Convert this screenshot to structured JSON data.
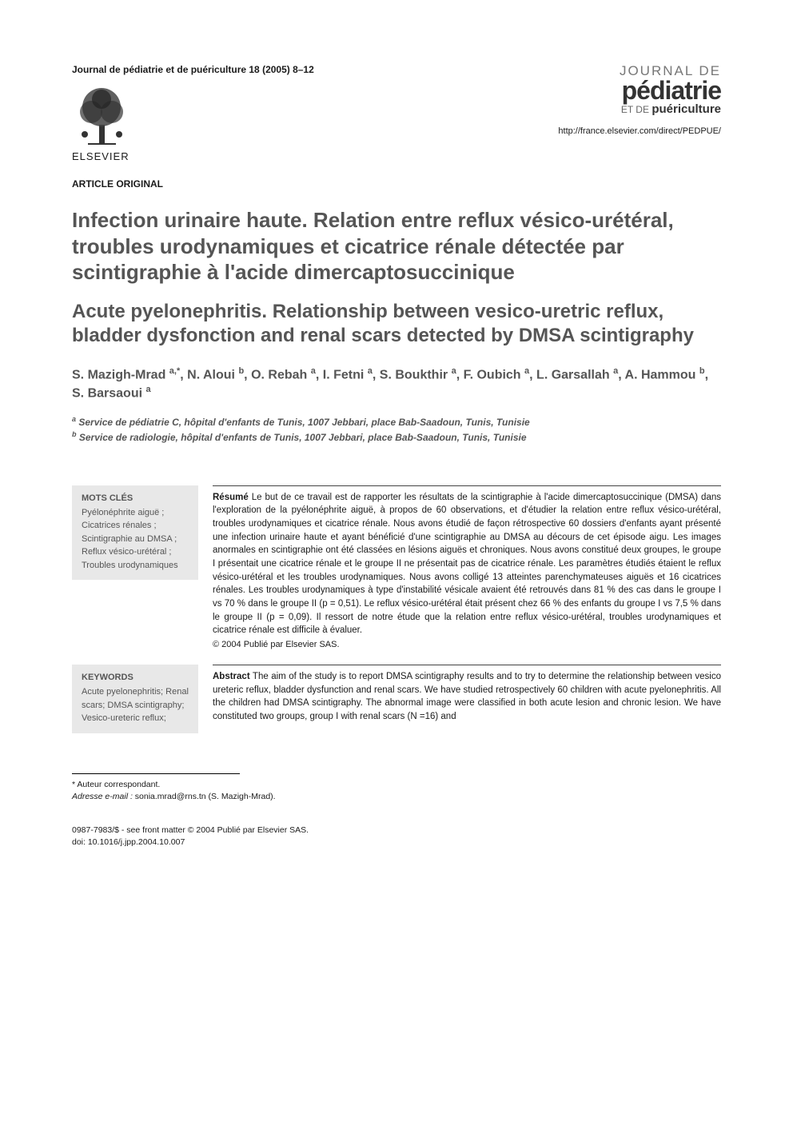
{
  "header": {
    "citation": "Journal de pédiatrie et de puériculture 18 (2005) 8–12",
    "publisher": "ELSEVIER",
    "journal_logo": {
      "line1": "JOURNAL DE",
      "line2": "pédiatrie",
      "line3_prefix": "ET DE ",
      "line3_bold": "puériculture"
    },
    "journal_url": "http://france.elsevier.com/direct/PEDPUE/",
    "article_type": "ARTICLE ORIGINAL"
  },
  "titles": {
    "french": "Infection urinaire haute. Relation entre reflux vésico-urétéral, troubles urodynamiques et cicatrice rénale détectée par scintigraphie à l'acide dimercaptosuccinique",
    "english": "Acute pyelonephritis. Relationship between vesico-uretric reflux, bladder dysfonction and renal scars detected by DMSA scintigraphy"
  },
  "authors_html": "S. Mazigh-Mrad <sup>a,*</sup>, N. Aloui <sup>b</sup>, O. Rebah <sup>a</sup>, I. Fetni <sup>a</sup>, S. Boukthir <sup>a</sup>, F. Oubich <sup>a</sup>, L. Garsallah <sup>a</sup>, A. Hammou <sup>b</sup>, S. Barsaoui <sup>a</sup>",
  "affiliations": {
    "a": "Service de pédiatrie C, hôpital d'enfants de Tunis, 1007 Jebbari, place Bab-Saadoun, Tunis, Tunisie",
    "b": "Service de radiologie, hôpital d'enfants de Tunis, 1007 Jebbari, place Bab-Saadoun, Tunis, Tunisie"
  },
  "mots_cles": {
    "title": "MOTS CLÉS",
    "body": "Pyélonéphrite aiguë ; Cicatrices rénales ; Scintigraphie au DMSA ; Reflux vésico-urétéral ; Troubles urodynamiques"
  },
  "resume": {
    "label": "Résumé",
    "body": "Le but de ce travail est de rapporter les résultats de la scintigraphie à l'acide dimercaptosuccinique (DMSA) dans l'exploration de la pyélonéphrite aiguë, à propos de 60 observations, et d'étudier la relation entre reflux vésico-urétéral, troubles urodynamiques et cicatrice rénale. Nous avons étudié de façon rétrospective 60 dossiers d'enfants ayant présenté une infection urinaire haute et ayant bénéficié d'une scintigraphie au DMSA au décours de cet épisode aigu. Les images anormales en scintigraphie ont été classées en lésions aiguës et chroniques. Nous avons constitué deux groupes, le groupe I présentait une cicatrice rénale et le groupe II ne présentait pas de cicatrice rénale. Les paramètres étudiés étaient le reflux vésico-urétéral et les troubles urodynamiques. Nous avons colligé 13 atteintes parenchymateuses aiguës et 16 cicatrices rénales. Les troubles urodynamiques à type d'instabilité vésicale avaient été retrouvés dans 81 % des cas dans le groupe I vs 70 % dans le groupe II (p = 0,51). Le reflux vésico-urétéral était présent chez 66 % des enfants du groupe I vs 7,5 % dans le groupe II (p = 0,09). Il ressort de notre étude que la relation entre reflux vésico-urétéral, troubles urodynamiques et cicatrice rénale est difficile à évaluer.",
    "copyright": "© 2004 Publié par Elsevier SAS."
  },
  "keywords": {
    "title": "KEYWORDS",
    "body": "Acute pyelonephritis; Renal scars; DMSA scintigraphy; Vesico-ureteric reflux;"
  },
  "abstract": {
    "label": "Abstract",
    "body": "The aim of the study is to report DMSA scintigraphy results and to try to determine the relationship between vesico ureteric reflux, bladder dysfunction and renal scars. We have studied retrospectively 60 children with acute pyelonephritis. All the children had DMSA scintigraphy. The abnormal image were classified in both acute lesion and chronic lesion. We have constituted two groups, group I with renal scars (N =16) and"
  },
  "footer": {
    "corresp_marker": "* Auteur correspondant.",
    "email_label": "Adresse e-mail :",
    "email": "sonia.mrad@rns.tn (S. Mazigh-Mrad).",
    "issn_line": "0987-7983/$ - see front matter © 2004 Publié par Elsevier SAS.",
    "doi": "doi: 10.1016/j.jpp.2004.10.007"
  },
  "colors": {
    "text_primary": "#1a1a1a",
    "text_muted": "#555555",
    "keywords_bg": "#e8e8e8",
    "background": "#ffffff"
  }
}
